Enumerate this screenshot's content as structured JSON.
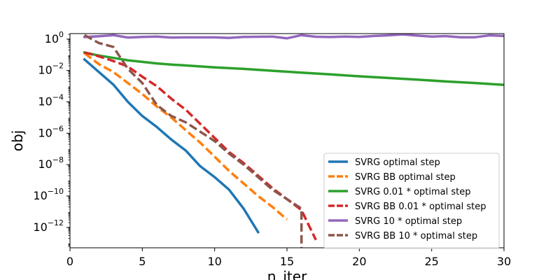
{
  "chart_data": {
    "type": "line",
    "title": "",
    "xlabel": "n_iter",
    "ylabel": "obj",
    "xlim": [
      0,
      30
    ],
    "ylim_log10": [
      -13.3,
      0.35
    ],
    "yscale": "log",
    "x_ticks": [
      0,
      5,
      10,
      15,
      20,
      25,
      30
    ],
    "y_ticks": [
      {
        "exp": 0,
        "base": "10",
        "sup": "0"
      },
      {
        "exp": -2,
        "base": "10",
        "sup": "−2"
      },
      {
        "exp": -4,
        "base": "10",
        "sup": "−4"
      },
      {
        "exp": -6,
        "base": "10",
        "sup": "−6"
      },
      {
        "exp": -8,
        "base": "10",
        "sup": "−8"
      },
      {
        "exp": -10,
        "base": "10",
        "sup": "−10"
      },
      {
        "exp": -12,
        "base": "10",
        "sup": "−12"
      }
    ],
    "grid": false,
    "legend_position": "lower-right",
    "series": [
      {
        "name": "SVRG optimal step",
        "color": "#1f77b4",
        "dash": "solid",
        "x": [
          1,
          2,
          3,
          4,
          5,
          6,
          7,
          8,
          9,
          10,
          11,
          12,
          13
        ],
        "log10_y": [
          -1.3,
          -2.1,
          -2.9,
          -4.0,
          -4.9,
          -5.6,
          -6.4,
          -7.1,
          -8.1,
          -8.8,
          -9.6,
          -10.8,
          -12.3
        ]
      },
      {
        "name": "SVRG BB optimal step",
        "color": "#ff7f0e",
        "dash": "dashed",
        "x": [
          1,
          2,
          3,
          4,
          5,
          6,
          7,
          8,
          9,
          10,
          11,
          12,
          13,
          14,
          15
        ],
        "log10_y": [
          -0.9,
          -1.6,
          -2.1,
          -2.8,
          -3.5,
          -4.3,
          -5.0,
          -5.8,
          -6.6,
          -7.5,
          -8.4,
          -9.2,
          -10.0,
          -10.7,
          -11.5
        ]
      },
      {
        "name": "SVRG 0.01 * optimal step",
        "color": "#2ca02c",
        "dash": "solid",
        "x": [
          1,
          2,
          3,
          4,
          5,
          6,
          7,
          8,
          9,
          10,
          12,
          14,
          16,
          18,
          20,
          22,
          24,
          26,
          28,
          30
        ],
        "log10_y": [
          -0.85,
          -1.05,
          -1.2,
          -1.35,
          -1.45,
          -1.55,
          -1.62,
          -1.68,
          -1.74,
          -1.8,
          -1.9,
          -2.02,
          -2.14,
          -2.25,
          -2.37,
          -2.48,
          -2.58,
          -2.7,
          -2.8,
          -2.92
        ]
      },
      {
        "name": "SVRG BB 0.01 * optimal step",
        "color": "#d62728",
        "dash": "dashed",
        "x": [
          1,
          2,
          3,
          4,
          5,
          6,
          7,
          8,
          9,
          10,
          11,
          12,
          13,
          14,
          15,
          16,
          17
        ],
        "log10_y": [
          -0.85,
          -1.1,
          -1.4,
          -1.75,
          -2.4,
          -3.0,
          -3.8,
          -4.5,
          -5.4,
          -6.3,
          -7.2,
          -7.9,
          -8.7,
          -9.5,
          -10.2,
          -10.9,
          -12.8
        ]
      },
      {
        "name": "SVRG 10 * optimal step",
        "color": "#9467bd",
        "dash": "solid",
        "x": [
          1,
          2,
          3,
          4,
          5,
          6,
          7,
          8,
          9,
          10,
          11,
          12,
          13,
          14,
          15,
          16,
          17,
          18,
          19,
          20,
          21,
          22,
          23,
          24,
          25,
          26,
          27,
          28,
          29,
          30
        ],
        "log10_y": [
          0.13,
          0.18,
          0.25,
          0.1,
          0.14,
          0.16,
          0.1,
          0.11,
          0.11,
          0.11,
          0.08,
          0.14,
          0.15,
          0.16,
          0.05,
          0.25,
          0.15,
          0.13,
          0.16,
          0.14,
          0.2,
          0.24,
          0.3,
          0.22,
          0.16,
          0.19,
          0.12,
          0.12,
          0.24,
          0.2
        ]
      },
      {
        "name": "SVRG BB 10 * optimal step",
        "color": "#8c564b",
        "dash": "dashed",
        "x": [
          1,
          2,
          3,
          4,
          5,
          6,
          7,
          8,
          9,
          10,
          11,
          12,
          13,
          14,
          15,
          16,
          16
        ],
        "log10_y": [
          0.25,
          -0.25,
          -0.5,
          -1.9,
          -2.8,
          -4.2,
          -4.9,
          -5.3,
          -5.9,
          -6.5,
          -7.3,
          -8.0,
          -8.8,
          -9.6,
          -10.2,
          -10.8,
          -13.3
        ]
      }
    ]
  }
}
